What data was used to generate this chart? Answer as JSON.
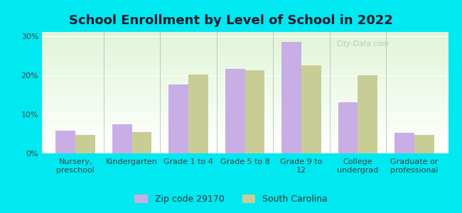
{
  "title": "School Enrollment by Level of School in 2022",
  "categories": [
    "Nursery,\npreschool",
    "Kindergarten",
    "Grade 1 to 4",
    "Grade 5 to 8",
    "Grade 9 to\n12",
    "College\nundergrad",
    "Graduate or\nprofessional"
  ],
  "zip_values": [
    5.8,
    7.5,
    17.5,
    21.5,
    28.5,
    13.0,
    5.2
  ],
  "sc_values": [
    4.8,
    5.5,
    20.2,
    21.2,
    22.5,
    20.0,
    4.8
  ],
  "zip_color": "#c9aee5",
  "sc_color": "#c8cd96",
  "background_outer": "#00e8f0",
  "ylim": [
    0,
    31
  ],
  "yticks": [
    0,
    10,
    20,
    30
  ],
  "ytick_labels": [
    "0%",
    "10%",
    "20%",
    "30%"
  ],
  "legend_zip_label": "Zip code 29170",
  "legend_sc_label": "South Carolina",
  "title_fontsize": 13,
  "tick_fontsize": 8,
  "legend_fontsize": 9,
  "watermark_text": "City-Data.com",
  "bar_width": 0.35
}
